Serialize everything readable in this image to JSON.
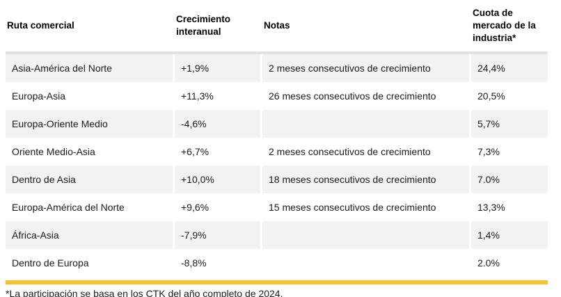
{
  "table": {
    "columns": [
      {
        "label": "Ruta comercial"
      },
      {
        "label": "Crecimiento interanual"
      },
      {
        "label": "Notas"
      },
      {
        "label": "Cuota de mercado de la industria*"
      }
    ],
    "rows": [
      {
        "route": "Asia-América del Norte",
        "growth": "+1,9%",
        "notes": "2 meses consecutivos de crecimiento",
        "share": "24,4%"
      },
      {
        "route": "Europa-Asia",
        "growth": "+11,3%",
        "notes": "26 meses consecutivos de crecimiento",
        "share": "20,5%"
      },
      {
        "route": "Europa-Oriente Medio",
        "growth": "-4,6%",
        "notes": "",
        "share": "5,7%"
      },
      {
        "route": "Oriente Medio-Asia",
        "growth": "+6,7%",
        "notes": "2 meses consecutivos de crecimiento",
        "share": "7,3%"
      },
      {
        "route": "Dentro de Asia",
        "growth": "+10,0%",
        "notes": "18 meses consecutivos de crecimiento",
        "share": "7.0%"
      },
      {
        "route": "Europa-América del Norte",
        "growth": "+9,6%",
        "notes": "15 meses consecutivos de crecimiento",
        "share": "13,3%"
      },
      {
        "route": "África-Asia",
        "growth": "-7,9%",
        "notes": "",
        "share": "1,4%"
      },
      {
        "route": "Dentro de Europa",
        "growth": "-8,8%",
        "notes": "",
        "share": "2.0%"
      }
    ]
  },
  "footnote": "*La participación se basa en los CTK del año completo de 2024.",
  "colors": {
    "accent_yellow": "#F2C434",
    "row_alt_gray": "#F2F2F2",
    "header_divider_gray": "#E2E2E2"
  },
  "chart_data": {
    "type": "table",
    "title": "",
    "columns": [
      "Ruta comercial",
      "Crecimiento interanual",
      "Notas",
      "Cuota de mercado de la industria*"
    ],
    "rows": [
      [
        "Asia-América del Norte",
        "+1,9%",
        "2 meses consecutivos de crecimiento",
        "24,4%"
      ],
      [
        "Europa-Asia",
        "+11,3%",
        "26 meses consecutivos de crecimiento",
        "20,5%"
      ],
      [
        "Europa-Oriente Medio",
        "-4,6%",
        "",
        "5,7%"
      ],
      [
        "Oriente Medio-Asia",
        "+6,7%",
        "2 meses consecutivos de crecimiento",
        "7,3%"
      ],
      [
        "Dentro de Asia",
        "+10,0%",
        "18 meses consecutivos de crecimiento",
        "7.0%"
      ],
      [
        "Europa-América del Norte",
        "+9,6%",
        "15 meses consecutivos de crecimiento",
        "13,3%"
      ],
      [
        "África-Asia",
        "-7,9%",
        "",
        "1,4%"
      ],
      [
        "Dentro de Europa",
        "-8,8%",
        "",
        "2.0%"
      ]
    ],
    "growth_values_pct": [
      1.9,
      11.3,
      -4.6,
      6.7,
      10.0,
      9.6,
      -7.9,
      -8.8
    ],
    "market_share_values_pct": [
      24.4,
      20.5,
      5.7,
      7.3,
      7.0,
      13.3,
      1.4,
      2.0
    ],
    "footnote": "*La participación se basa en los CTK del año completo de 2024."
  }
}
